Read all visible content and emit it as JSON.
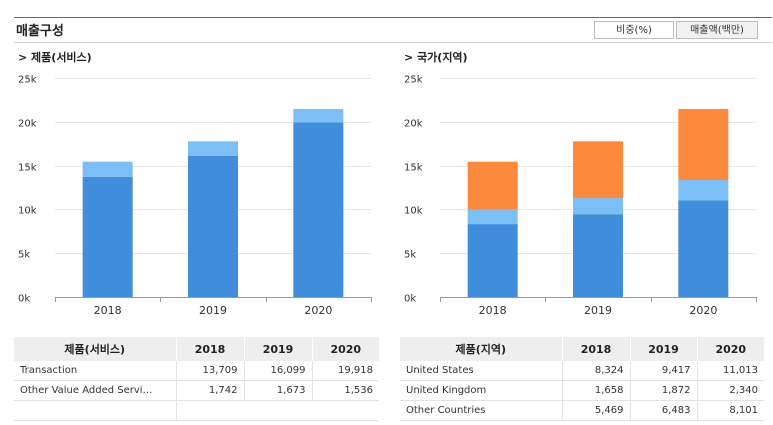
{
  "header": {
    "title": "매출구성",
    "tabs": [
      {
        "label": "비중(%)",
        "active": false
      },
      {
        "label": "매출액(백만)",
        "active": true
      }
    ]
  },
  "left": {
    "section_title": "> 제품(서비스)",
    "table": {
      "columns": [
        "제품(서비스)",
        "2018",
        "2019",
        "2020"
      ],
      "rows": [
        {
          "label": "Transaction",
          "values": [
            "13,709",
            "16,099",
            "19,918"
          ]
        },
        {
          "label": "Other Value Added Servi…",
          "values": [
            "1,742",
            "1,673",
            "1,536"
          ]
        },
        {
          "label": "",
          "values": [
            "",
            "",
            ""
          ]
        }
      ]
    }
  },
  "right": {
    "section_title": "> 국가(지역)",
    "table": {
      "columns": [
        "제품(지역)",
        "2018",
        "2019",
        "2020"
      ],
      "rows": [
        {
          "label": "United States",
          "values": [
            "8,324",
            "9,417",
            "11,013"
          ]
        },
        {
          "label": "United Kingdom",
          "values": [
            "1,658",
            "1,872",
            "2,340"
          ]
        },
        {
          "label": "Other Countries",
          "values": [
            "5,469",
            "6,483",
            "8,101"
          ]
        }
      ]
    }
  },
  "chart_data": [
    {
      "type": "bar",
      "stacked": true,
      "categories": [
        "2018",
        "2019",
        "2020"
      ],
      "ylim": [
        0,
        25000
      ],
      "yticks": [
        0,
        5000,
        10000,
        15000,
        20000,
        25000
      ],
      "ytick_labels": [
        "0k",
        "5k",
        "10k",
        "15k",
        "20k",
        "25k"
      ],
      "grid": true,
      "series": [
        {
          "values": [
            13709,
            16099,
            19918
          ],
          "color": "#3f8ddb"
        },
        {
          "values": [
            1742,
            1673,
            1536
          ],
          "color": "#7cbef6"
        }
      ]
    },
    {
      "type": "bar",
      "stacked": true,
      "categories": [
        "2018",
        "2019",
        "2020"
      ],
      "ylim": [
        0,
        25000
      ],
      "yticks": [
        0,
        5000,
        10000,
        15000,
        20000,
        25000
      ],
      "ytick_labels": [
        "0k",
        "5k",
        "10k",
        "15k",
        "20k",
        "25k"
      ],
      "grid": true,
      "series": [
        {
          "values": [
            8324,
            9417,
            11013
          ],
          "color": "#3f8ddb"
        },
        {
          "values": [
            1658,
            1872,
            2340
          ],
          "color": "#7cbef6"
        },
        {
          "values": [
            5469,
            6483,
            8101
          ],
          "color": "#fb8a3c"
        }
      ]
    }
  ]
}
